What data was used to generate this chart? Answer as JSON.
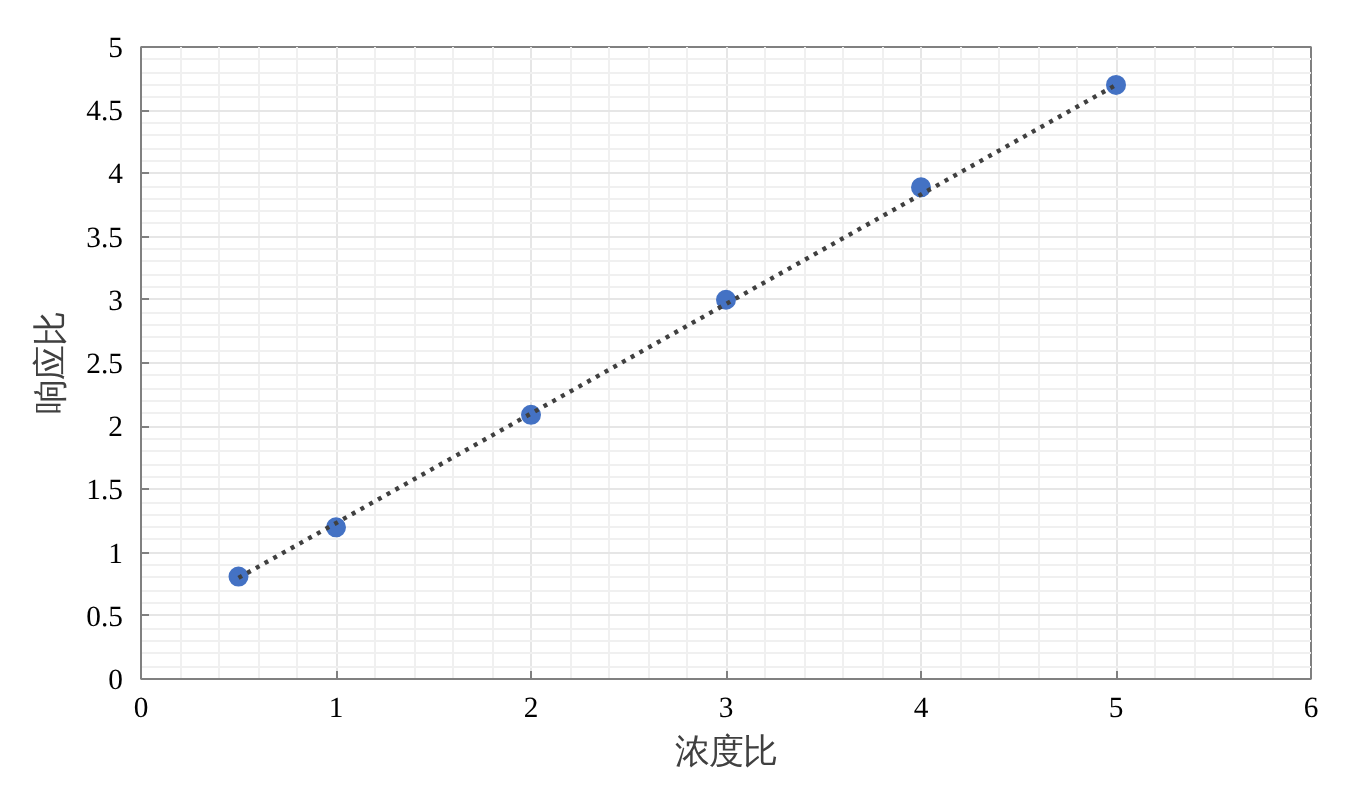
{
  "chart_data": {
    "type": "scatter",
    "xlabel": "浓度比",
    "ylabel": "响应比",
    "x": [
      0.5,
      1,
      2,
      3,
      4,
      5
    ],
    "series": [
      {
        "color": "#4472c4",
        "marker": "circle",
        "values": [
          0.81,
          1.2,
          2.09,
          3.0,
          3.89,
          4.7
        ]
      },
      {
        "type": "line",
        "color": "#404040",
        "marker": "none",
        "line_style": "dotted",
        "x": [
          0.5,
          5
        ],
        "values": [
          0.8,
          4.7
        ]
      }
    ],
    "xlim": [
      0,
      6
    ],
    "xticks": [
      0,
      1,
      2,
      3,
      4,
      5,
      6
    ],
    "ylim": [
      0,
      5
    ],
    "yticks": [
      0,
      0.5,
      1,
      1.5,
      2,
      2.5,
      3,
      3.5,
      4,
      4.5,
      5
    ],
    "grid": true
  }
}
